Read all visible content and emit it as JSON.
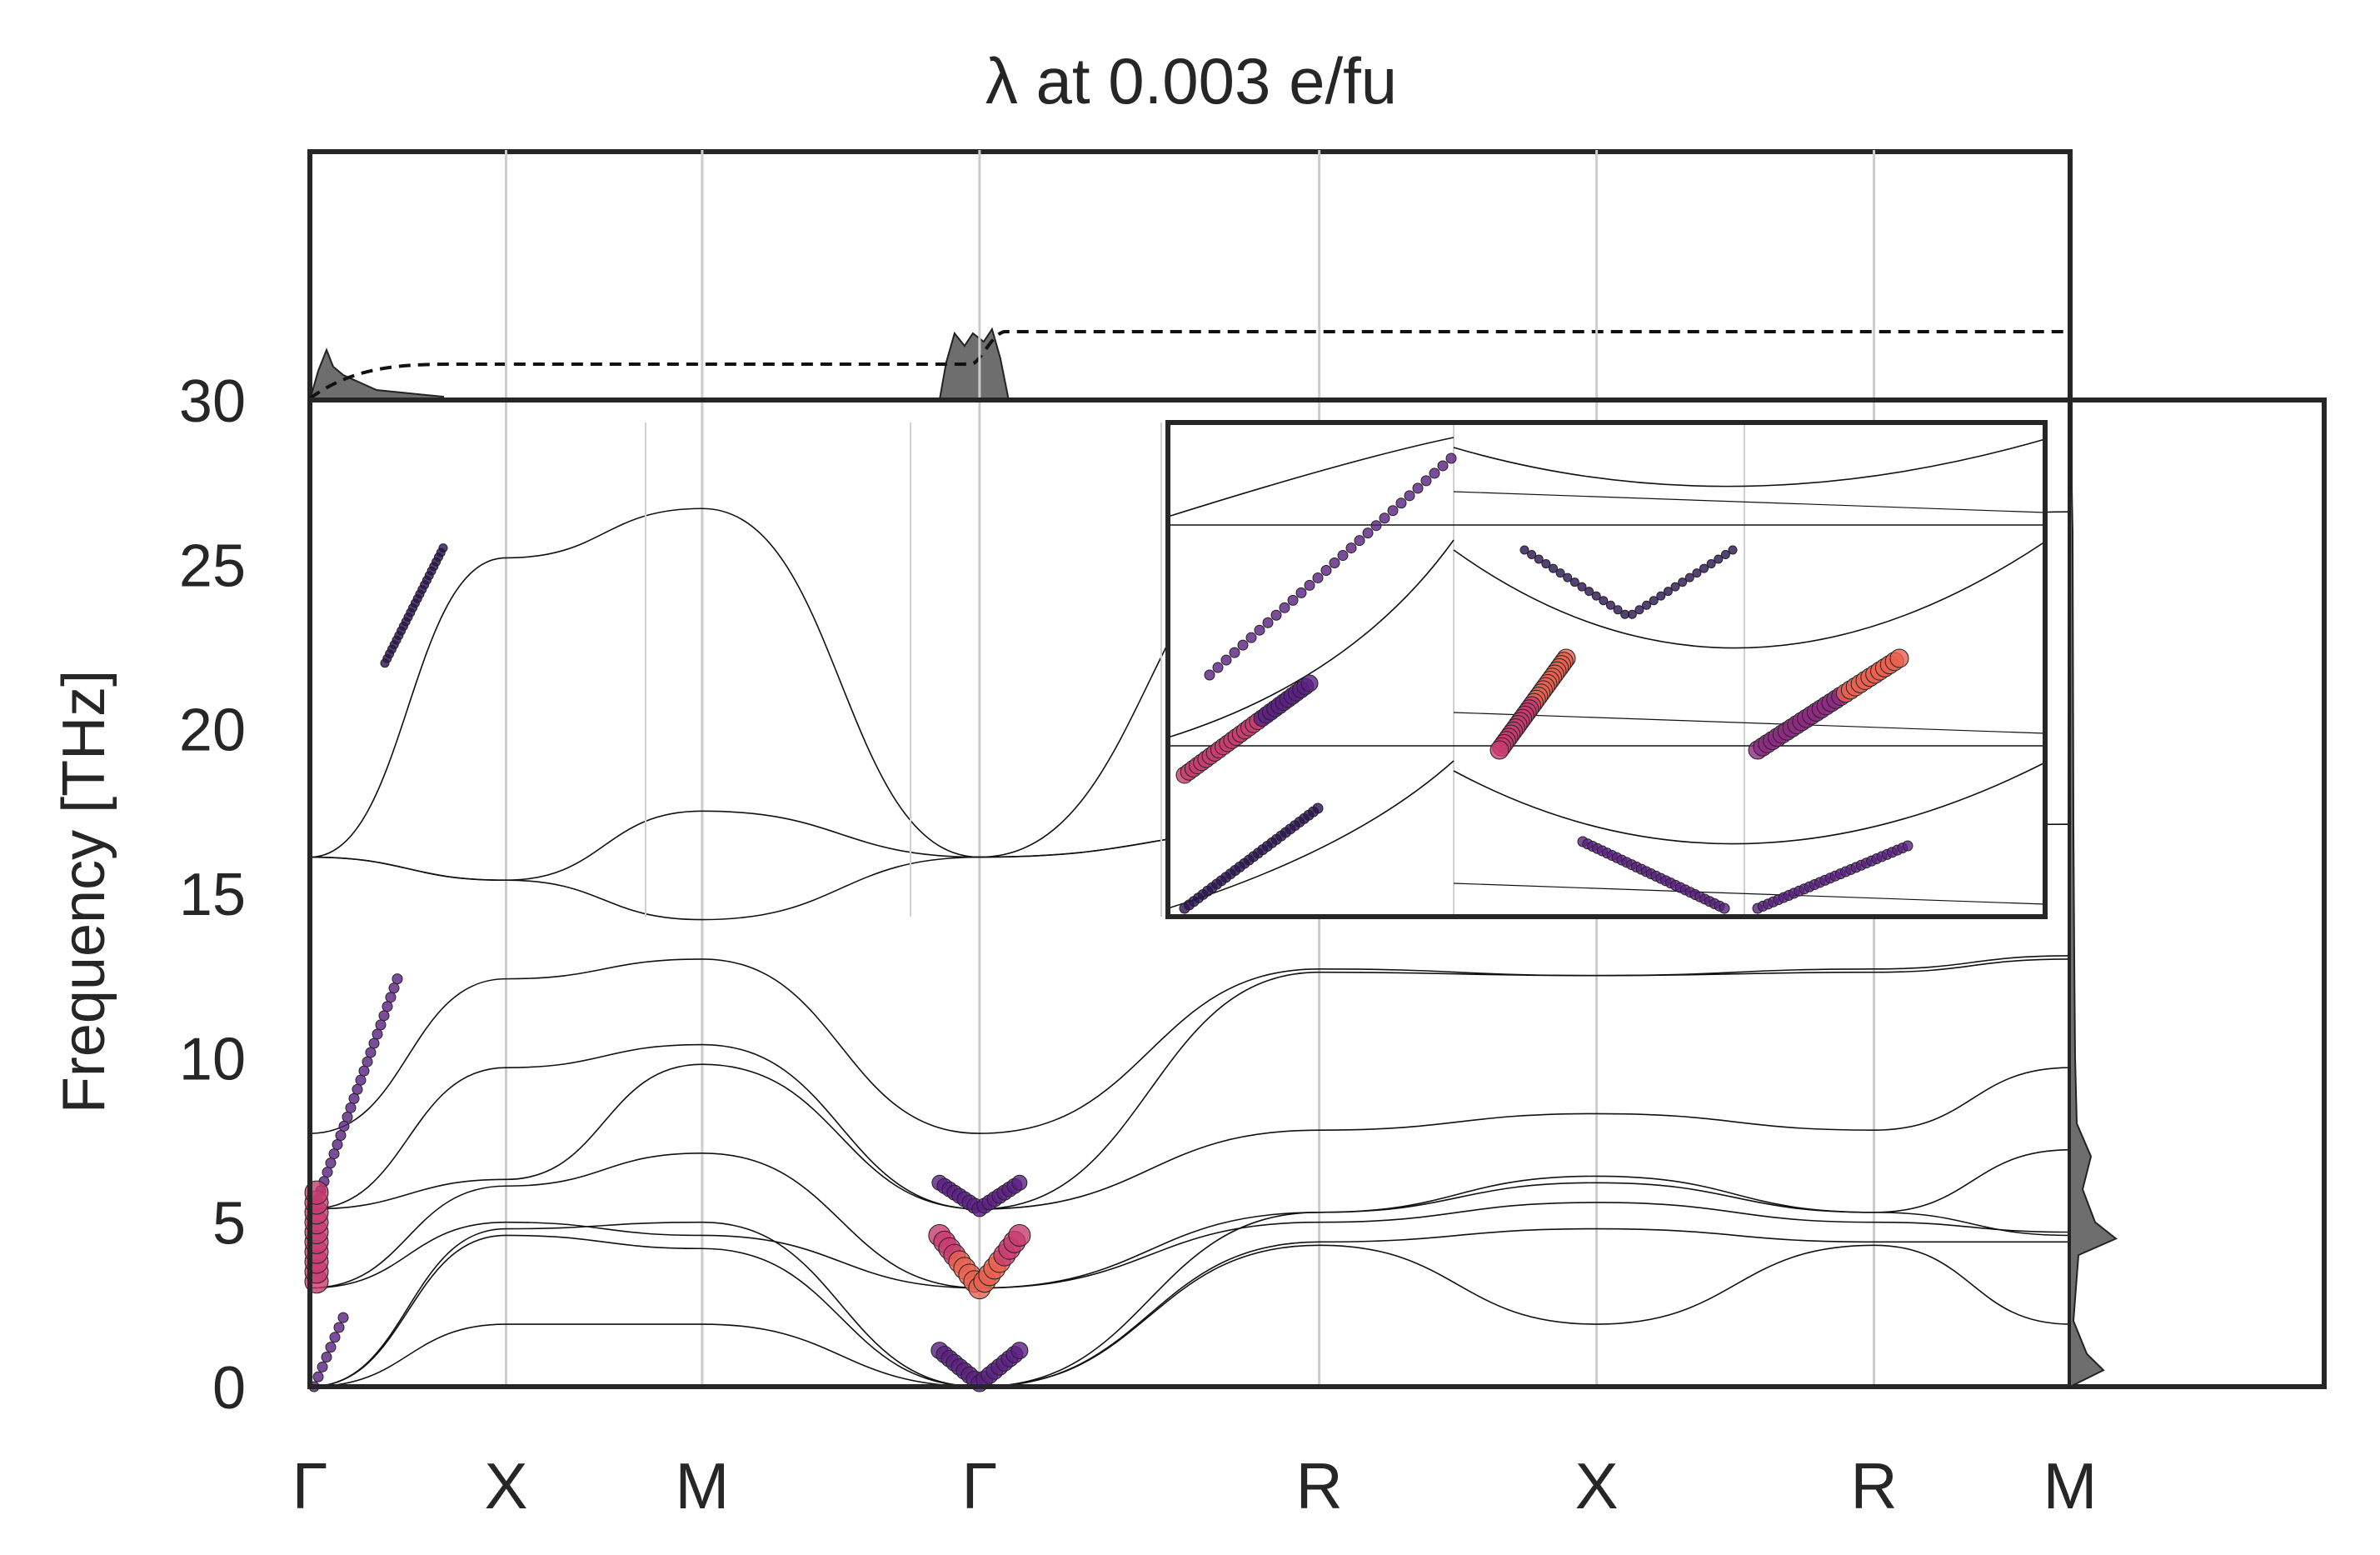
{
  "title": "λ at 0.003 e/fu",
  "chart_data": {
    "type": "line",
    "title": "λ at 0.003 e/fu",
    "xlabel": "",
    "ylabel": "Frequency [THz]",
    "ylim": [
      0,
      30
    ],
    "yticks": [
      0,
      5,
      10,
      15,
      20,
      25,
      30
    ],
    "kpath": [
      {
        "label": "Γ",
        "pos": 0.0
      },
      {
        "label": "X",
        "pos": 0.5
      },
      {
        "label": "M",
        "pos": 1.0
      },
      {
        "label": "Γ",
        "pos": 1.707
      },
      {
        "label": "R",
        "pos": 2.573
      },
      {
        "label": "X",
        "pos": 3.28
      },
      {
        "label": "R",
        "pos": 3.987
      },
      {
        "label": "M",
        "pos": 4.487
      }
    ],
    "grid": true,
    "colormap": [
      "#2b1154",
      "#5b1f83",
      "#8c2981",
      "#c73c6e",
      "#e9604f"
    ],
    "bands": [
      {
        "name": "band-1",
        "points": [
          [
            0,
            0
          ],
          [
            0.5,
            1.9
          ],
          [
            1.0,
            1.9
          ],
          [
            1.707,
            0
          ],
          [
            2.573,
            4.3
          ],
          [
            3.28,
            1.9
          ],
          [
            3.987,
            4.3
          ],
          [
            4.487,
            1.9
          ]
        ]
      },
      {
        "name": "band-2",
        "points": [
          [
            0,
            0
          ],
          [
            0.5,
            4.6
          ],
          [
            1.0,
            4.2
          ],
          [
            1.707,
            0
          ],
          [
            2.573,
            4.4
          ],
          [
            3.28,
            4.8
          ],
          [
            3.987,
            4.4
          ],
          [
            4.487,
            4.4
          ]
        ]
      },
      {
        "name": "band-3",
        "points": [
          [
            0,
            0
          ],
          [
            0.5,
            4.8
          ],
          [
            1.0,
            5.0
          ],
          [
            1.707,
            0
          ],
          [
            2.573,
            5.3
          ],
          [
            3.28,
            6.2
          ],
          [
            3.987,
            5.3
          ],
          [
            4.487,
            4.6
          ]
        ]
      },
      {
        "name": "band-4",
        "points": [
          [
            0,
            3.0
          ],
          [
            0.5,
            5.0
          ],
          [
            1.0,
            4.6
          ],
          [
            1.707,
            3.0
          ],
          [
            2.573,
            5.0
          ],
          [
            3.28,
            5.6
          ],
          [
            3.987,
            5.0
          ],
          [
            4.487,
            4.7
          ]
        ]
      },
      {
        "name": "band-5",
        "points": [
          [
            0,
            3.0
          ],
          [
            0.5,
            6.1
          ],
          [
            1.0,
            7.1
          ],
          [
            1.707,
            3.0
          ],
          [
            2.573,
            5.3
          ],
          [
            3.28,
            6.4
          ],
          [
            3.987,
            5.3
          ],
          [
            4.487,
            7.2
          ]
        ]
      },
      {
        "name": "band-6",
        "points": [
          [
            0,
            5.4
          ],
          [
            0.5,
            6.3
          ],
          [
            1.0,
            9.8
          ],
          [
            1.707,
            5.4
          ],
          [
            2.573,
            7.8
          ],
          [
            3.28,
            8.3
          ],
          [
            3.987,
            7.8
          ],
          [
            4.487,
            9.7
          ]
        ]
      },
      {
        "name": "band-7",
        "points": [
          [
            0,
            5.4
          ],
          [
            0.5,
            9.7
          ],
          [
            1.0,
            10.4
          ],
          [
            1.707,
            5.4
          ],
          [
            2.573,
            12.6
          ],
          [
            3.28,
            12.5
          ],
          [
            3.987,
            12.6
          ],
          [
            4.487,
            13.0
          ]
        ]
      },
      {
        "name": "band-8",
        "points": [
          [
            0,
            7.7
          ],
          [
            0.5,
            12.4
          ],
          [
            1.0,
            13.0
          ],
          [
            1.707,
            7.7
          ],
          [
            2.573,
            12.7
          ],
          [
            3.28,
            12.5
          ],
          [
            3.987,
            12.7
          ],
          [
            4.487,
            13.1
          ]
        ]
      },
      {
        "name": "band-9",
        "points": [
          [
            0,
            16.1
          ],
          [
            0.5,
            15.4
          ],
          [
            1.0,
            14.2
          ],
          [
            1.707,
            16.1
          ],
          [
            2.573,
            17.0
          ],
          [
            3.28,
            17.0
          ],
          [
            3.987,
            17.0
          ],
          [
            4.487,
            17.1
          ]
        ]
      },
      {
        "name": "band-10",
        "points": [
          [
            0,
            16.1
          ],
          [
            0.5,
            15.4
          ],
          [
            1.0,
            17.5
          ],
          [
            1.707,
            16.1
          ],
          [
            2.573,
            17.0
          ],
          [
            3.28,
            17.0
          ],
          [
            3.987,
            17.0
          ],
          [
            4.487,
            17.1
          ]
        ]
      },
      {
        "name": "band-11",
        "points": [
          [
            0,
            16.1
          ],
          [
            0.5,
            25.2
          ],
          [
            1.0,
            26.7
          ],
          [
            1.707,
            16.1
          ],
          [
            2.573,
            26.8
          ],
          [
            3.28,
            26.1
          ],
          [
            3.987,
            26.2
          ],
          [
            4.487,
            26.6
          ]
        ]
      }
    ],
    "inset": {
      "xlim": [
        1.4,
        2.0
      ],
      "ylim": [
        0,
        30
      ],
      "segments": [
        {
          "name": "inset-low",
          "ylim": [
            0,
            7.5
          ]
        },
        {
          "name": "inset-mid",
          "ylim": [
            2.5,
            7.8
          ]
        },
        {
          "name": "inset-high",
          "ylim": [
            15.5,
            26.5
          ]
        }
      ]
    }
  }
}
